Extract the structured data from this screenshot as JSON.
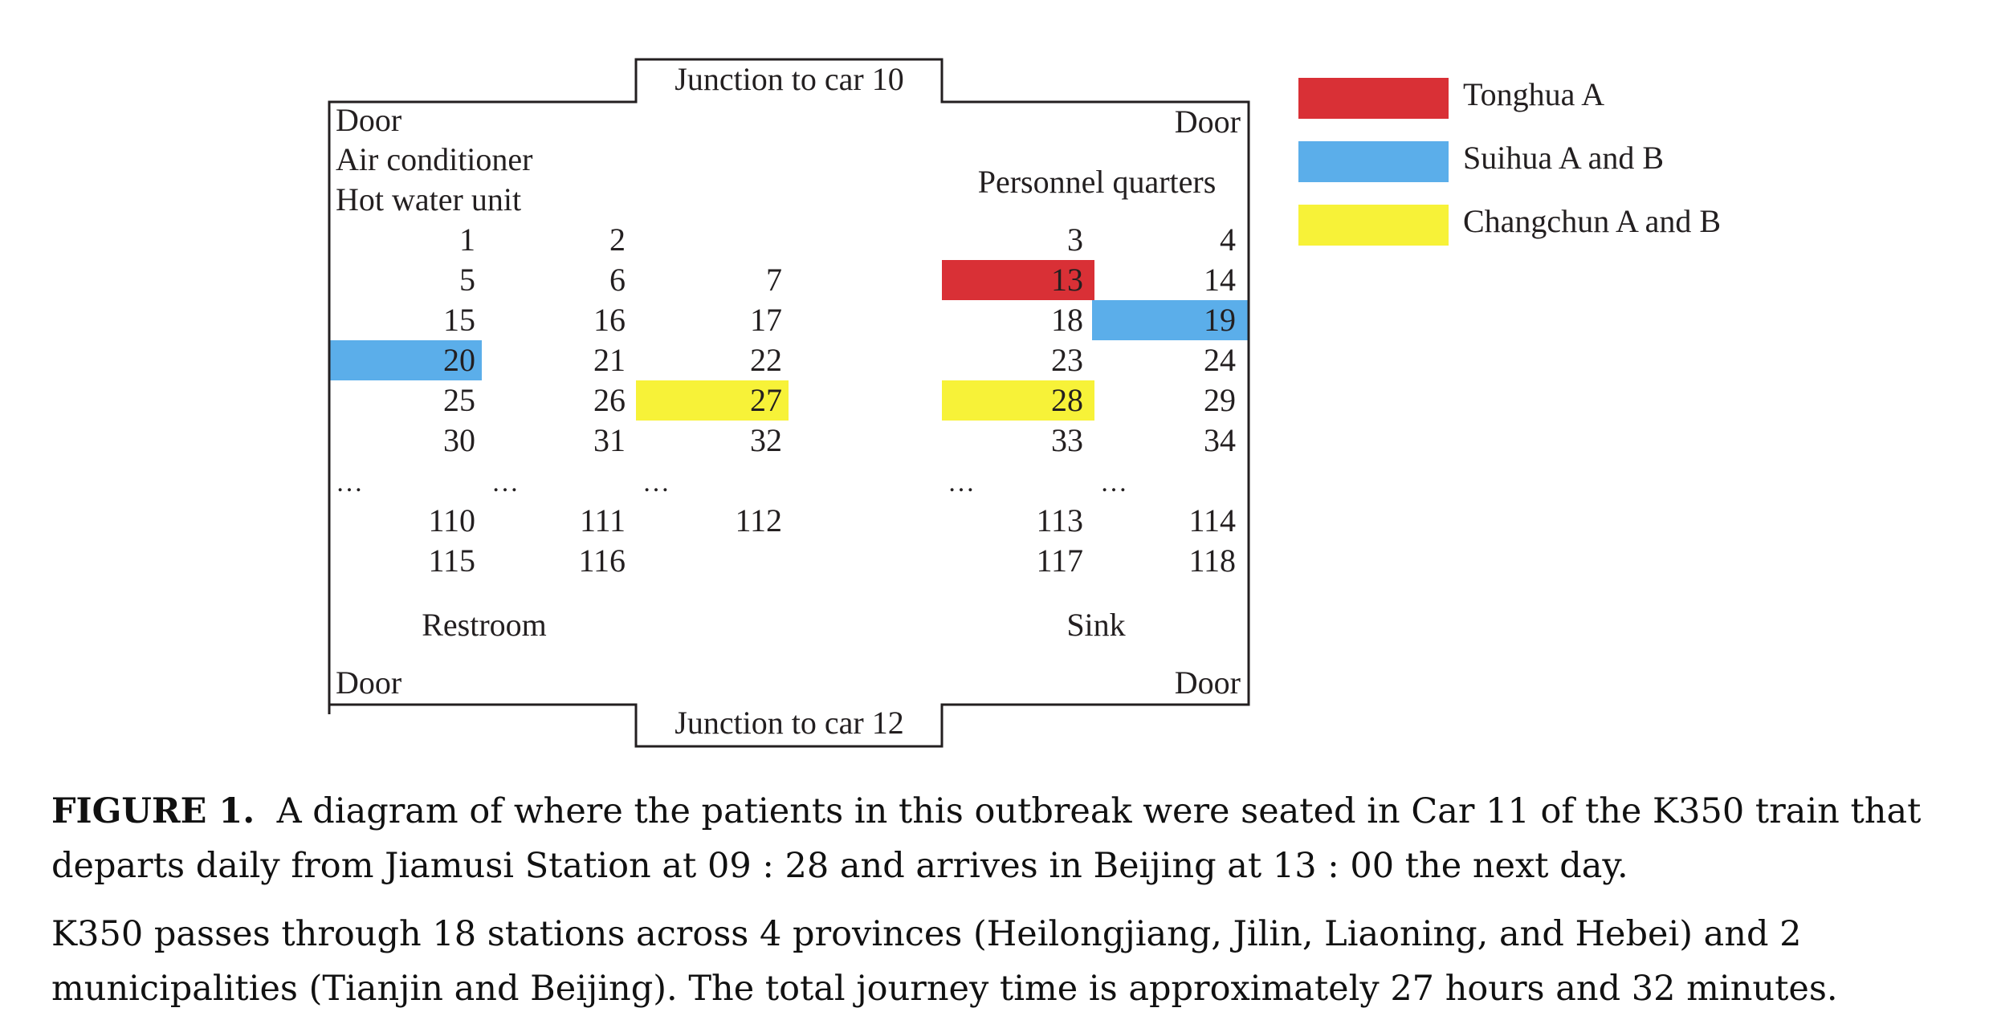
{
  "car": {
    "junction_top": "Junction to car 10",
    "junction_bottom": "Junction to car 12",
    "door_label": "Door",
    "left_top_labels": [
      "Air conditioner",
      "Hot water unit"
    ],
    "personnel_quarters": "Personnel quarters",
    "restroom": "Restroom",
    "sink": "Sink",
    "ellipsis": "…",
    "seat_rows": [
      [
        "1",
        "2",
        "",
        "3",
        "4"
      ],
      [
        "5",
        "6",
        "7",
        "13",
        "14"
      ],
      [
        "15",
        "16",
        "17",
        "18",
        "19"
      ],
      [
        "20",
        "21",
        "22",
        "23",
        "24"
      ],
      [
        "25",
        "26",
        "27",
        "28",
        "29"
      ],
      [
        "30",
        "31",
        "32",
        "33",
        "34"
      ],
      [
        "110",
        "111",
        "112",
        "113",
        "114"
      ],
      [
        "115",
        "116",
        "",
        "117",
        "118"
      ]
    ]
  },
  "highlights": [
    {
      "seat": "13",
      "group": "tonghua"
    },
    {
      "seat": "19",
      "group": "suihua"
    },
    {
      "seat": "20",
      "group": "suihua"
    },
    {
      "seat": "27",
      "group": "changchun"
    },
    {
      "seat": "28",
      "group": "changchun"
    }
  ],
  "legend": [
    {
      "key": "tonghua",
      "label": "Tonghua A",
      "color": "#d93036"
    },
    {
      "key": "suihua",
      "label": "Suihua A and B",
      "color": "#5baeea"
    },
    {
      "key": "changchun",
      "label": "Changchun A and B",
      "color": "#f7f238"
    }
  ],
  "caption": {
    "figure_label": "FIGURE 1.",
    "line1": "A diagram of where the patients in this outbreak were seated in Car 11 of the K350 train that departs daily from Jiamusi Station at 09 : 28 and arrives in Beijing at 13 : 00 the next day.",
    "line2": "K350 passes through 18 stations across 4 provinces (Heilongjiang, Jilin, Liaoning, and Hebei) and 2 municipalities (Tianjin and Beijing). The total journey time is approximately 27 hours and 32 minutes."
  }
}
